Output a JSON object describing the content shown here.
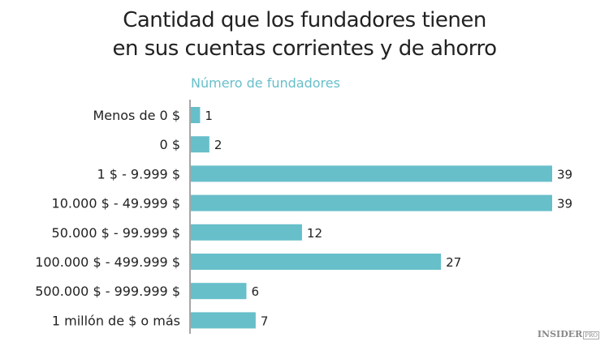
{
  "chart_data": {
    "type": "bar",
    "orientation": "horizontal",
    "title": "Cantidad que los fundadores tienen en sus cuentas corrientes y de ahorro",
    "title_lines": [
      "Cantidad que los fundadores tienen",
      "en sus cuentas corrientes y de ahorro"
    ],
    "subtitle": "Número de fundadores",
    "categories": [
      "Menos de 0 $",
      "0 $",
      "1 $ - 9.999 $",
      "10.000 $ - 49.999 $",
      "50.000 $ - 99.999 $",
      "100.000 $ - 499.999 $",
      "500.000 $ - 999.999 $",
      "1 millón de $ o más"
    ],
    "values": [
      1,
      2,
      39,
      39,
      12,
      27,
      6,
      7
    ],
    "xlim": [
      0,
      39
    ],
    "grid": false,
    "bar_color": "#67bfca"
  },
  "logo": {
    "text": "INSIDER",
    "badge": "PRO"
  }
}
